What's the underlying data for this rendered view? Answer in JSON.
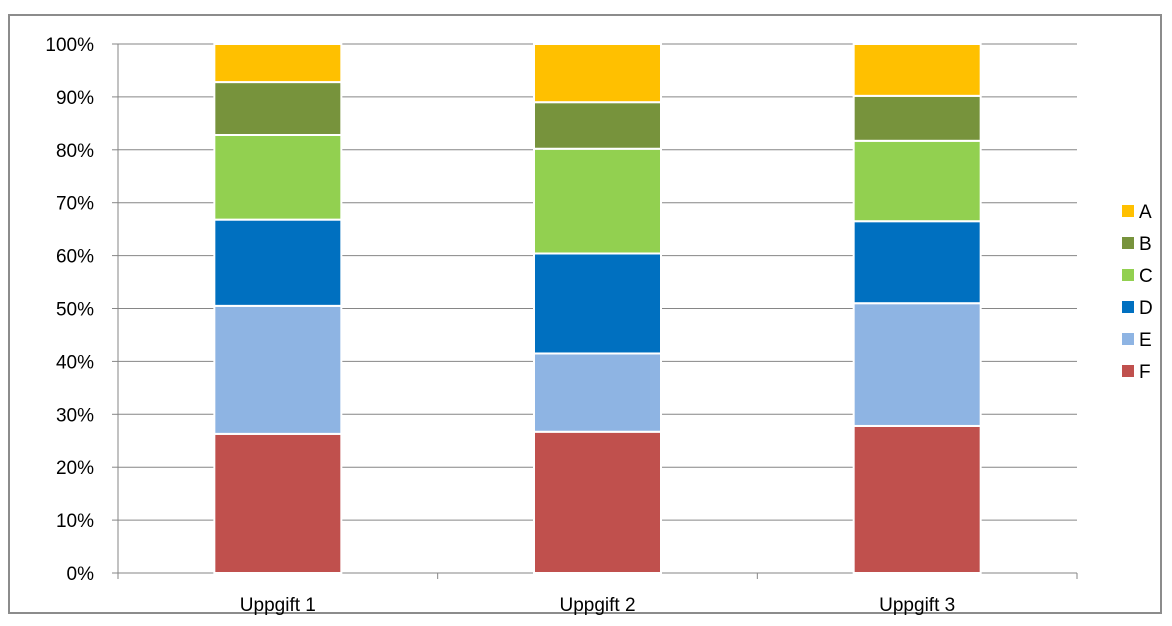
{
  "chart_data": {
    "type": "bar",
    "stacked": true,
    "percent": true,
    "categories": [
      "Uppgift 1",
      "Uppgift 2",
      "Uppgift 3"
    ],
    "series": [
      {
        "name": "F",
        "color": "#c0504d",
        "values": [
          26.3,
          26.7,
          27.8
        ]
      },
      {
        "name": "E",
        "color": "#8eb4e3",
        "values": [
          24.2,
          14.8,
          23.2
        ]
      },
      {
        "name": "D",
        "color": "#0070c0",
        "values": [
          16.3,
          18.9,
          15.5
        ]
      },
      {
        "name": "C",
        "color": "#92d050",
        "values": [
          16.0,
          19.8,
          15.2
        ]
      },
      {
        "name": "B",
        "color": "#77933c",
        "values": [
          10.0,
          8.8,
          8.5
        ]
      },
      {
        "name": "A",
        "color": "#ffc000",
        "values": [
          7.2,
          11.0,
          9.8
        ]
      }
    ],
    "yticks": [
      "0%",
      "10%",
      "20%",
      "30%",
      "40%",
      "50%",
      "60%",
      "70%",
      "80%",
      "90%",
      "100%"
    ],
    "ylim": [
      0,
      100
    ],
    "grid": true,
    "legend": "right",
    "title": "",
    "xlabel": "",
    "ylabel": ""
  }
}
